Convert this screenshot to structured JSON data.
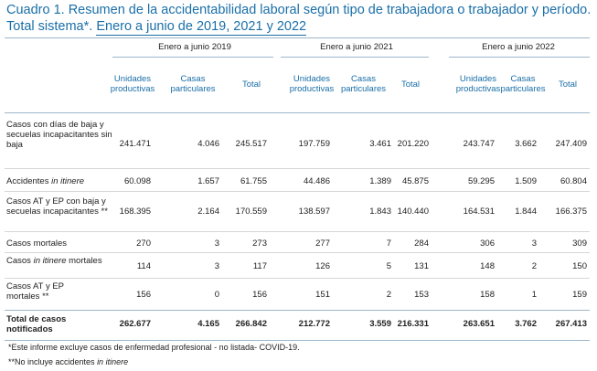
{
  "title": {
    "line1": "Cuadro 1. Resumen de la accidentabilidad laboral según tipo de trabajadora o trabajador y período.",
    "line2a": "Total sistema*.",
    "line2b": "Enero a junio de 2019, 2021 y 2022"
  },
  "groups": [
    "Enero a junio 2019",
    "Enero a junio 2021",
    "Enero a junio 2022"
  ],
  "subheaders": [
    "Unidades productivas",
    "Casas particulares",
    "Total"
  ],
  "rows": [
    {
      "label": "Casos con días de baja y secuelas incapacitantes sin baja",
      "values": [
        "241.471",
        "4.046",
        "245.517",
        "197.759",
        "3.461",
        "201.220",
        "243.747",
        "3.662",
        "247.409"
      ]
    },
    {
      "label_pre": "Accidentes ",
      "label_em": "in itinere",
      "values": [
        "60.098",
        "1.657",
        "61.755",
        "44.486",
        "1.389",
        "45.875",
        "59.295",
        "1.509",
        "60.804"
      ]
    },
    {
      "label": "Casos AT y EP con baja y secuelas incapacitantes **",
      "values": [
        "168.395",
        "2.164",
        "170.559",
        "138.597",
        "1.843",
        "140.440",
        "164.531",
        "1.844",
        "166.375"
      ]
    },
    {
      "label": "Casos mortales",
      "values": [
        "270",
        "3",
        "273",
        "277",
        "7",
        "284",
        "306",
        "3",
        "309"
      ]
    },
    {
      "label_pre": "Casos ",
      "label_em": "in itinere",
      "label_post": " mortales",
      "values": [
        "114",
        "3",
        "117",
        "126",
        "5",
        "131",
        "148",
        "2",
        "150"
      ]
    },
    {
      "label": "Casos AT y EP mortales **",
      "values": [
        "156",
        "0",
        "156",
        "151",
        "2",
        "153",
        "158",
        "1",
        "159"
      ]
    }
  ],
  "total": {
    "label": "Total de casos notificados",
    "values": [
      "262.677",
      "4.165",
      "266.842",
      "212.772",
      "3.559",
      "216.331",
      "263.651",
      "3.762",
      "267.413"
    ]
  },
  "notes": {
    "n1": "*Este informe excluye casos de enfermedad profesional - no listada- COVID-19.",
    "n2_pre": "**No incluye accidentes ",
    "n2_em": "in itinere"
  }
}
